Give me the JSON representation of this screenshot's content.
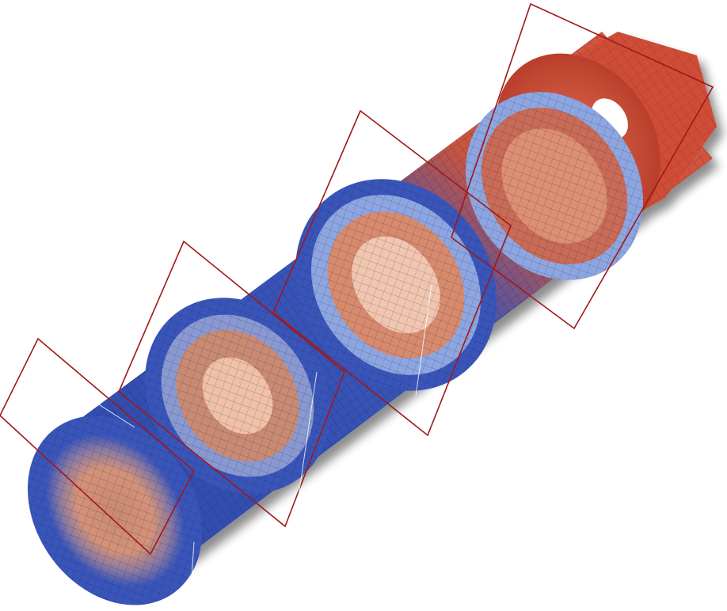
{
  "scene": {
    "background": "#ffffff",
    "colors": {
      "cold": "#3a55b8",
      "cold_dark": "#1e2f7a",
      "cold_light": "#8ea6e0",
      "warm_core": "#d88a6c",
      "warm_light": "#f1c6ae",
      "hot": "#d9553c",
      "hot_dark": "#8f2c1c",
      "mesh_line": "#0a1560",
      "slice_plane": "#a01818"
    },
    "slices": [
      {
        "id": "slice-1"
      },
      {
        "id": "slice-2"
      },
      {
        "id": "slice-3"
      },
      {
        "id": "slice-4"
      }
    ]
  }
}
